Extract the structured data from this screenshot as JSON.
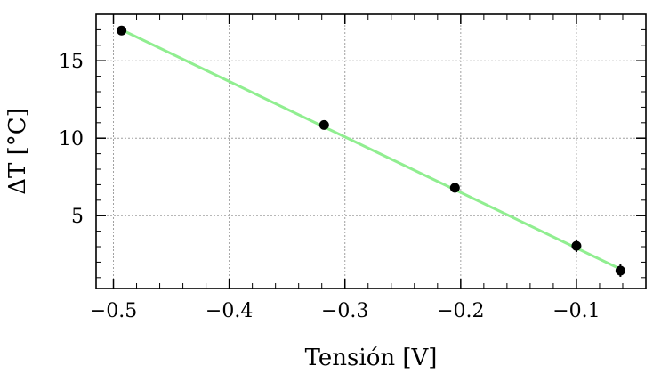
{
  "chart_data": {
    "type": "scatter",
    "xlabel": "Tensión [V]",
    "ylabel": "ΔT [°C]",
    "xlim": [
      -0.515,
      -0.04
    ],
    "ylim": [
      0.3,
      18.0
    ],
    "grid": true,
    "x_ticks": [
      {
        "value": -0.5,
        "label": "−0.5"
      },
      {
        "value": -0.4,
        "label": "−0.4"
      },
      {
        "value": -0.3,
        "label": "−0.3"
      },
      {
        "value": -0.2,
        "label": "−0.2"
      },
      {
        "value": -0.1,
        "label": "−0.1"
      }
    ],
    "y_ticks": [
      {
        "value": 5,
        "label": "5"
      },
      {
        "value": 10,
        "label": "10"
      },
      {
        "value": 15,
        "label": "15"
      }
    ],
    "series": [
      {
        "kind": "points",
        "color": "#000000",
        "x": [
          -0.493,
          -0.318,
          -0.205,
          -0.1,
          -0.062
        ],
        "y": [
          16.95,
          10.85,
          6.8,
          3.05,
          1.45
        ],
        "yerr": [
          0.15,
          0.25,
          0.3,
          0.4,
          0.4
        ]
      },
      {
        "kind": "fit-line",
        "color": "#90ee90",
        "x": [
          -0.493,
          -0.062
        ],
        "y": [
          17.0,
          1.55
        ]
      }
    ]
  }
}
